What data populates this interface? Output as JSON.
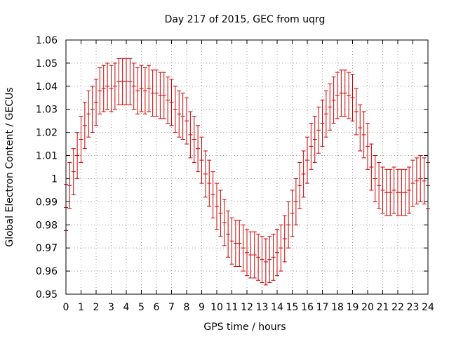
{
  "chart_data": {
    "type": "scatter",
    "title": "Day 217 of 2015, GEC from uqrg",
    "xlabel": "GPS time / hours",
    "ylabel": "Global Electron Content / GECUs",
    "xlim": [
      0,
      24
    ],
    "ylim": [
      0.95,
      1.06
    ],
    "xticks": [
      "0",
      "1",
      "2",
      "3",
      "4",
      "5",
      "6",
      "7",
      "8",
      "9",
      "10",
      "11",
      "12",
      "13",
      "14",
      "15",
      "16",
      "17",
      "18",
      "19",
      "20",
      "21",
      "22",
      "23",
      "24"
    ],
    "yticks": [
      "0.95",
      "0.96",
      "0.97",
      "0.98",
      "0.99",
      "1",
      "1.01",
      "1.02",
      "1.03",
      "1.04",
      "1.05",
      "1.06"
    ],
    "grid": true,
    "colors": {
      "series": "#cc0000",
      "grid": "#a0a0a0",
      "axis": "#000000"
    },
    "error_half_width": 0.01,
    "x": [
      0.0,
      0.25,
      0.5,
      0.75,
      1.0,
      1.25,
      1.5,
      1.75,
      2.0,
      2.25,
      2.5,
      2.75,
      3.0,
      3.25,
      3.5,
      3.75,
      4.0,
      4.25,
      4.5,
      4.75,
      5.0,
      5.25,
      5.5,
      5.75,
      6.0,
      6.25,
      6.5,
      6.75,
      7.0,
      7.25,
      7.5,
      7.75,
      8.0,
      8.25,
      8.5,
      8.75,
      9.0,
      9.25,
      9.5,
      9.75,
      10.0,
      10.25,
      10.5,
      10.75,
      11.0,
      11.25,
      11.5,
      11.75,
      12.0,
      12.25,
      12.5,
      12.75,
      13.0,
      13.25,
      13.5,
      13.75,
      14.0,
      14.25,
      14.5,
      14.75,
      15.0,
      15.25,
      15.5,
      15.75,
      16.0,
      16.25,
      16.5,
      16.75,
      17.0,
      17.25,
      17.5,
      17.75,
      18.0,
      18.25,
      18.5,
      18.75,
      19.0,
      19.25,
      19.5,
      19.75,
      20.0,
      20.25,
      20.5,
      20.75,
      21.0,
      21.25,
      21.5,
      21.75,
      22.0,
      22.25,
      22.5,
      22.75,
      23.0,
      23.25,
      23.5,
      23.75,
      24.0
    ],
    "y": [
      0.9875,
      0.997,
      1.003,
      1.01,
      1.017,
      1.023,
      1.028,
      1.03,
      1.033,
      1.038,
      1.039,
      1.04,
      1.039,
      1.04,
      1.042,
      1.042,
      1.042,
      1.042,
      1.04,
      1.038,
      1.039,
      1.038,
      1.039,
      1.037,
      1.037,
      1.036,
      1.036,
      1.034,
      1.033,
      1.03,
      1.028,
      1.027,
      1.025,
      1.019,
      1.017,
      1.013,
      1.008,
      1.002,
      0.998,
      0.993,
      0.988,
      0.985,
      0.981,
      0.976,
      0.973,
      0.972,
      0.972,
      0.97,
      0.968,
      0.967,
      0.967,
      0.966,
      0.965,
      0.964,
      0.965,
      0.966,
      0.968,
      0.97,
      0.974,
      0.98,
      0.985,
      0.99,
      0.997,
      1.002,
      1.008,
      1.014,
      1.017,
      1.021,
      1.024,
      1.028,
      1.031,
      1.034,
      1.036,
      1.037,
      1.037,
      1.036,
      1.035,
      1.029,
      1.022,
      1.019,
      1.014,
      1.005,
      1.0,
      0.997,
      0.995,
      0.994,
      0.994,
      0.995,
      0.994,
      0.994,
      0.994,
      0.995,
      0.998,
      0.999,
      1.0,
      0.999,
      0.997
    ]
  }
}
